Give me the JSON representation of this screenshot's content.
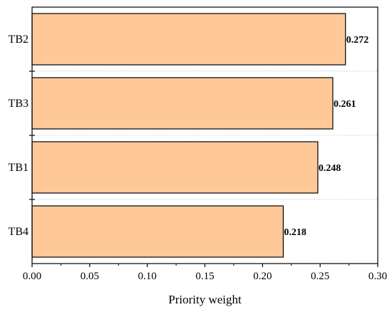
{
  "chart_data": {
    "type": "bar",
    "orientation": "horizontal",
    "categories": [
      "TB2",
      "TB3",
      "TB1",
      "TB4"
    ],
    "values": [
      0.272,
      0.261,
      0.248,
      0.218
    ],
    "data_labels": [
      "0.272",
      "0.261",
      "0.248",
      "0.218"
    ],
    "xlabel": "Priority weight",
    "ylabel": "",
    "title": "",
    "xlim": [
      0,
      0.3
    ],
    "x_ticks": [
      0.0,
      0.05,
      0.1,
      0.15,
      0.2,
      0.25,
      0.3
    ],
    "x_tick_labels": [
      "0.00",
      "0.05",
      "0.10",
      "0.15",
      "0.20",
      "0.25",
      "0.30"
    ],
    "grid": "dotted horizontal separators between bars",
    "bar_color": "#FFC899",
    "bar_edge_color": "#000000"
  }
}
